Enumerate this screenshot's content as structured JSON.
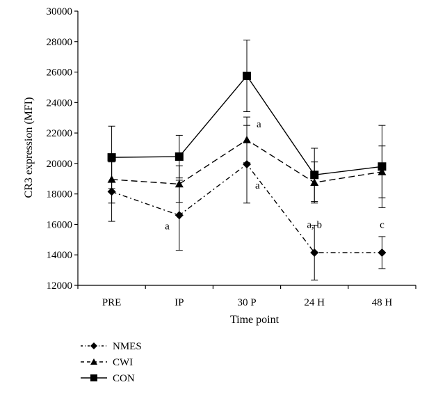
{
  "chart_data": {
    "type": "line",
    "title": "",
    "xlabel": "Time point",
    "ylabel": "CR3 expression (MFI)",
    "categories": [
      "PRE",
      "IP",
      "30 P",
      "24 H",
      "48 H"
    ],
    "ylim": [
      12000,
      30000
    ],
    "yticks": [
      "12000",
      "14000",
      "16000",
      "18000",
      "20000",
      "22000",
      "24000",
      "26000",
      "28000",
      "30000"
    ],
    "grid": false,
    "legend_position": "bottom-left",
    "series": [
      {
        "name": "NMES",
        "marker": "diamond",
        "dash": "dash-dot",
        "values": [
          18150,
          16600,
          19950,
          14150,
          14150
        ],
        "error": [
          1950,
          2300,
          2550,
          1800,
          1050
        ]
      },
      {
        "name": "CWI",
        "marker": "triangle",
        "dash": "dashed",
        "values": [
          18950,
          18650,
          21550,
          18750,
          19450
        ],
        "error": [
          1550,
          1200,
          1500,
          1350,
          1700
        ]
      },
      {
        "name": "CON",
        "marker": "square",
        "dash": "solid",
        "values": [
          20400,
          20450,
          25750,
          19250,
          19800
        ],
        "error": [
          2050,
          1400,
          2350,
          1750,
          2700
        ]
      }
    ],
    "annotations": [
      {
        "text": "a",
        "category": "IP",
        "value": 16600,
        "anchor": "left"
      },
      {
        "text": "a",
        "category": "30 P",
        "value": 21550,
        "anchor": "right-up"
      },
      {
        "text": "a",
        "category": "30 P",
        "value": 19950,
        "anchor": "right-down"
      },
      {
        "text": "a, b",
        "category": "24 H",
        "value": 15500,
        "anchor": "above"
      },
      {
        "text": "c",
        "category": "48 H",
        "value": 15500,
        "anchor": "above"
      }
    ]
  }
}
